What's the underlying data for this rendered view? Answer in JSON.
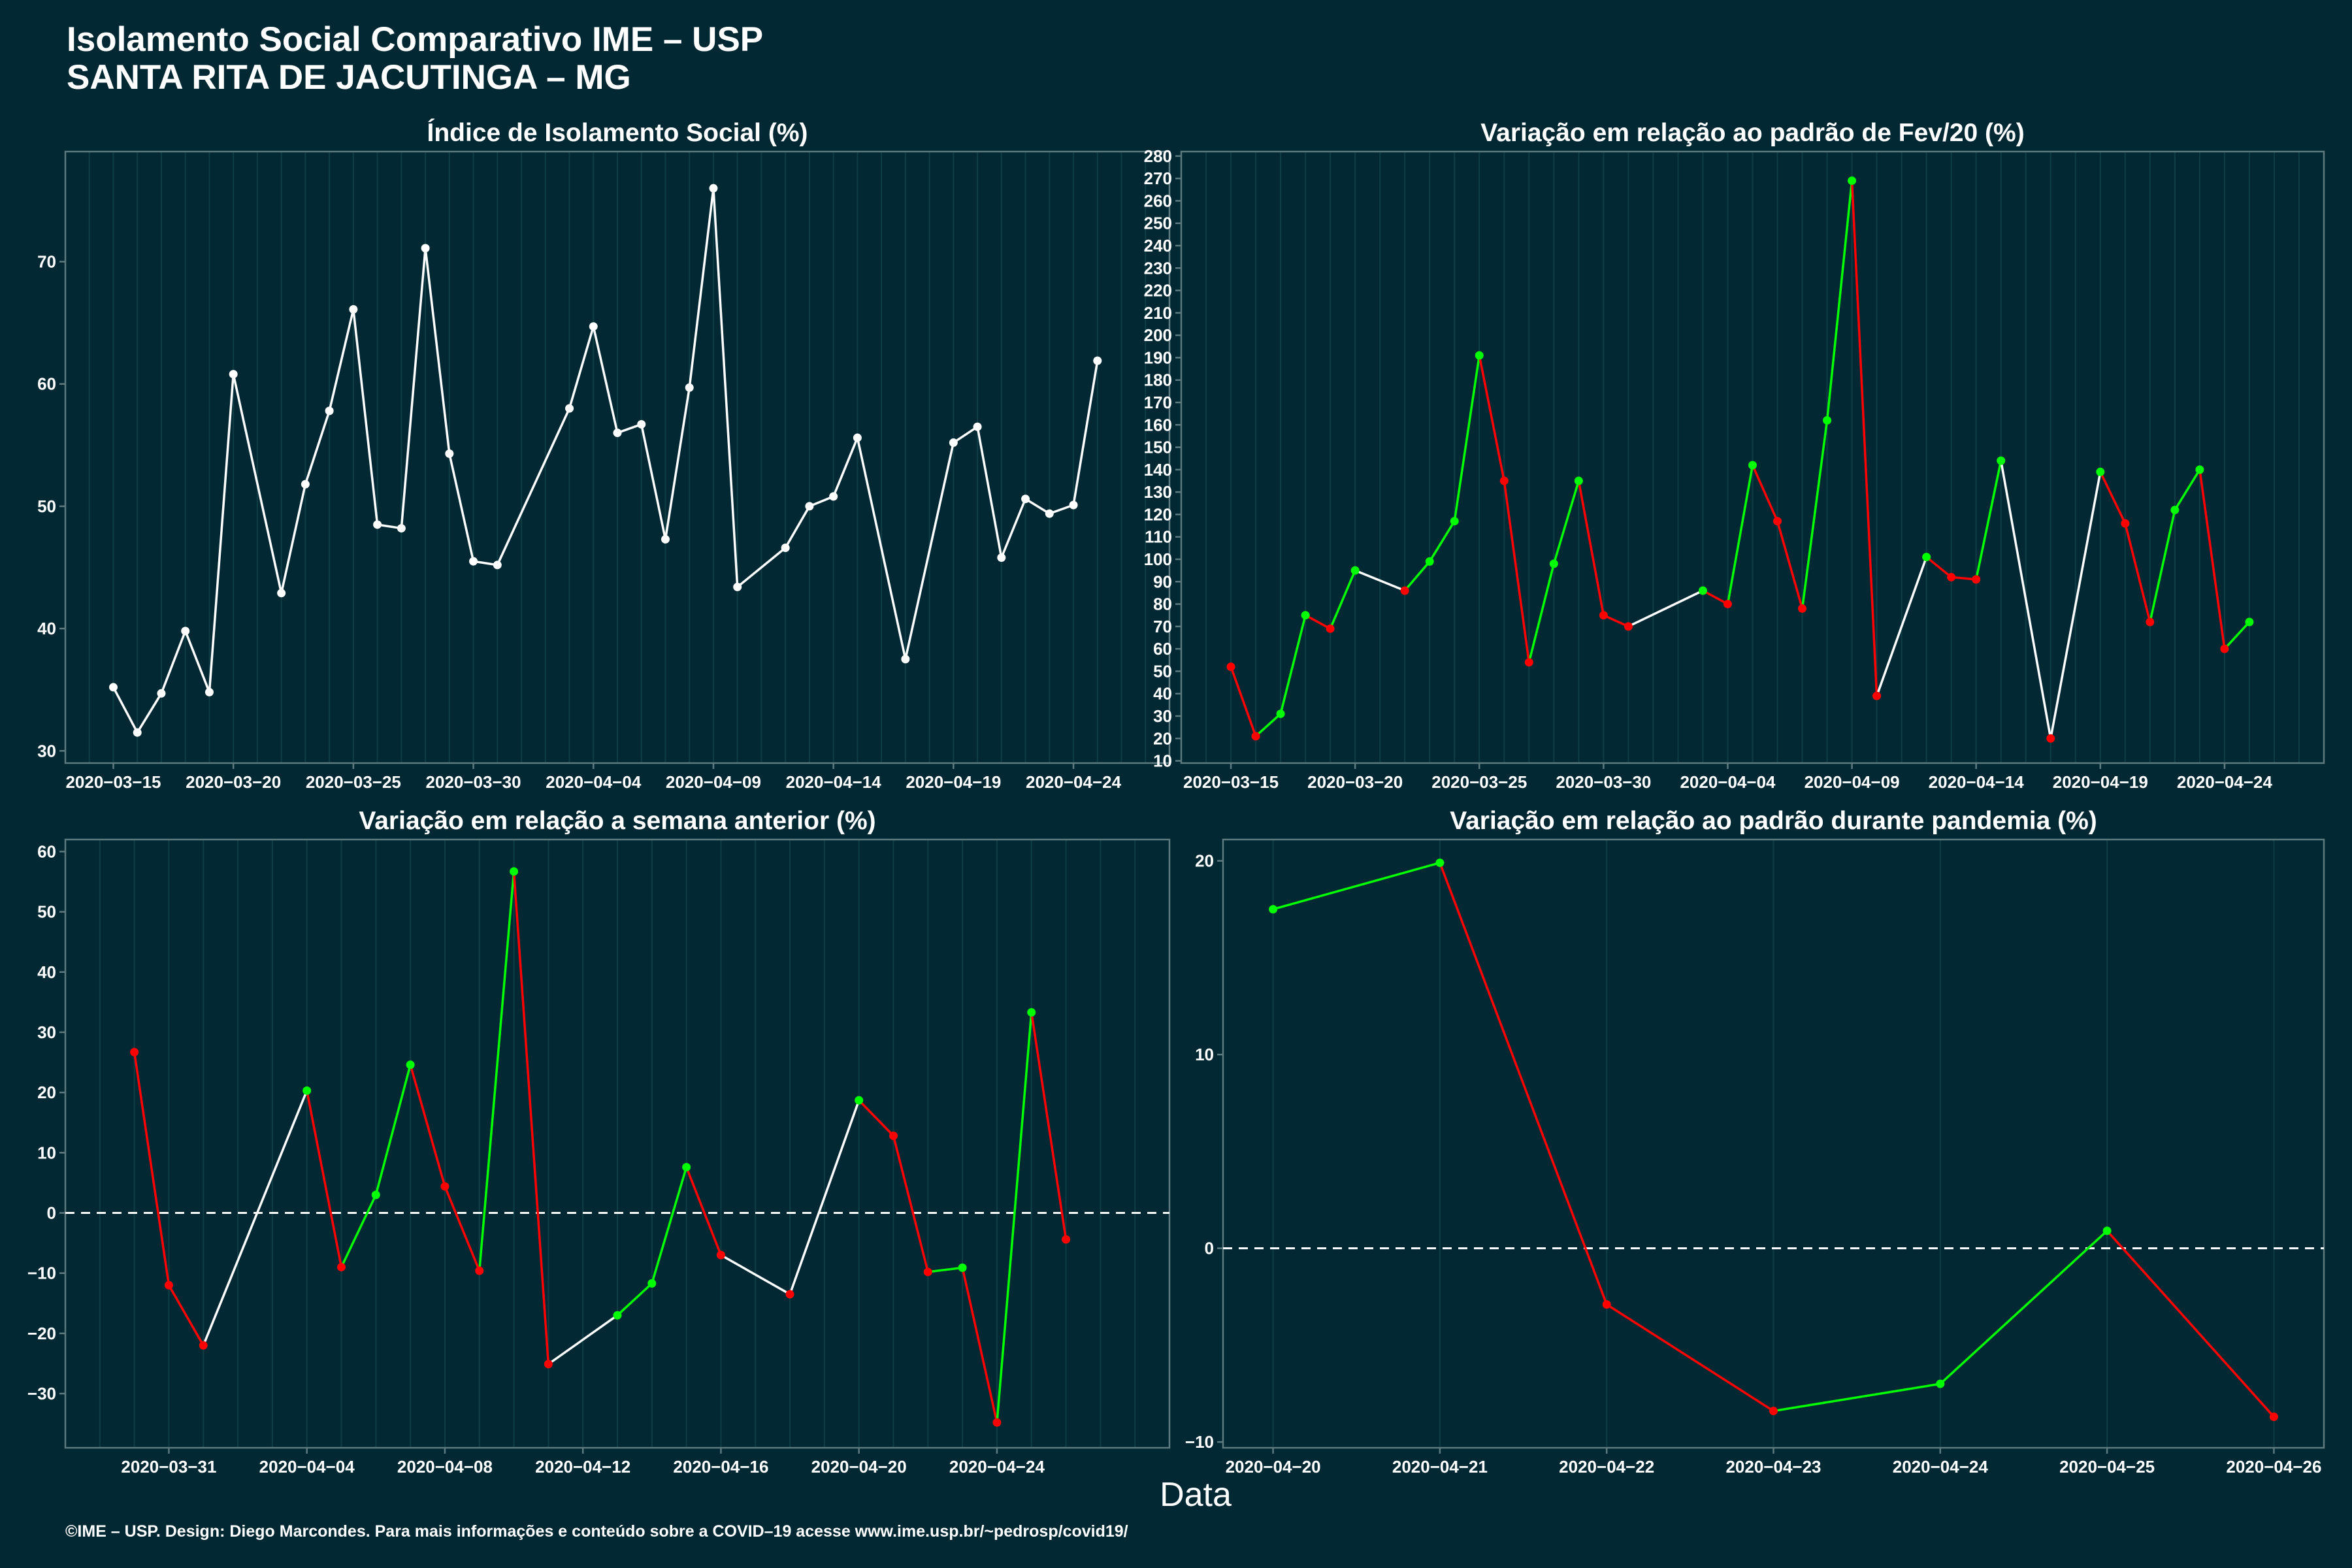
{
  "header": {
    "title_line1": "Isolamento Social Comparativo IME – USP",
    "title_line2": "SANTA RITA DE JACUTINGA – MG"
  },
  "xlabel": "Data",
  "caption": "©IME – USP. Design: Diego Marcondes. Para mais informações e conteúdo sobre a COVID–19 acesse www.ime.usp.br/~pedrosp/covid19/",
  "colors": {
    "background": "#022933",
    "frame": "#5d7a80",
    "grid": "#0f3d46",
    "line_neutral": "#ffffff",
    "up": "#00ff00",
    "down": "#ff0000",
    "zero_line": "#ffffff"
  },
  "chart_data": [
    {
      "type": "line",
      "title": "Índice de Isolamento Social (%)",
      "xlabel": "Data",
      "ylabel": "",
      "ylim": [
        29,
        79
      ],
      "yticks": [
        30,
        40,
        50,
        60,
        70
      ],
      "xlim": [
        "2020-03-13",
        "2020-04-28"
      ],
      "xticks": [
        "2020-03-15",
        "2020-03-20",
        "2020-03-25",
        "2020-03-30",
        "2020-04-04",
        "2020-04-09",
        "2020-04-14",
        "2020-04-19",
        "2020-04-24"
      ],
      "color_mode": "white",
      "series": [
        {
          "dates": [
            "2020-03-15",
            "2020-03-16",
            "2020-03-17",
            "2020-03-18",
            "2020-03-19",
            "2020-03-20",
            "2020-03-22",
            "2020-03-23",
            "2020-03-24",
            "2020-03-25",
            "2020-03-26",
            "2020-03-27",
            "2020-03-28",
            "2020-03-29",
            "2020-03-30",
            "2020-03-31",
            "2020-04-03",
            "2020-04-04",
            "2020-04-05",
            "2020-04-06",
            "2020-04-07",
            "2020-04-08",
            "2020-04-09",
            "2020-04-10",
            "2020-04-12",
            "2020-04-13",
            "2020-04-14",
            "2020-04-15",
            "2020-04-17",
            "2020-04-19",
            "2020-04-20",
            "2020-04-21",
            "2020-04-22",
            "2020-04-23",
            "2020-04-24",
            "2020-04-25",
            "2020-04-26"
          ],
          "values": [
            35.2,
            31.5,
            34.7,
            39.8,
            34.8,
            60.8,
            42.9,
            51.8,
            57.8,
            66.1,
            48.5,
            48.2,
            71.1,
            54.3,
            45.5,
            45.2,
            58.0,
            64.7,
            56.0,
            56.7,
            47.3,
            59.7,
            76.0,
            43.4,
            46.6,
            50.0,
            50.8,
            55.6,
            37.5,
            55.2,
            56.5,
            45.8,
            50.6,
            49.4,
            50.1,
            61.9,
            null
          ]
        }
      ]
    },
    {
      "type": "line",
      "title": "Variação em relação ao padrão de Fev/20 (%)",
      "xlabel": "Data",
      "ylabel": "",
      "ylim": [
        9,
        282
      ],
      "yticks": [
        10,
        20,
        30,
        40,
        50,
        60,
        70,
        80,
        90,
        100,
        110,
        120,
        130,
        140,
        150,
        160,
        170,
        180,
        190,
        200,
        210,
        220,
        230,
        240,
        250,
        260,
        270,
        280
      ],
      "xlim": [
        "2020-03-13",
        "2020-04-28"
      ],
      "xticks": [
        "2020-03-15",
        "2020-03-20",
        "2020-03-25",
        "2020-03-30",
        "2020-04-04",
        "2020-04-09",
        "2020-04-14",
        "2020-04-19",
        "2020-04-24"
      ],
      "color_mode": "trend",
      "series": [
        {
          "dates": [
            "2020-03-15",
            "2020-03-16",
            "2020-03-17",
            "2020-03-18",
            "2020-03-19",
            "2020-03-20",
            "2020-03-22",
            "2020-03-23",
            "2020-03-24",
            "2020-03-25",
            "2020-03-26",
            "2020-03-27",
            "2020-03-28",
            "2020-03-29",
            "2020-03-30",
            "2020-03-31",
            "2020-04-03",
            "2020-04-04",
            "2020-04-05",
            "2020-04-06",
            "2020-04-07",
            "2020-04-08",
            "2020-04-09",
            "2020-04-10",
            "2020-04-12",
            "2020-04-13",
            "2020-04-14",
            "2020-04-15",
            "2020-04-17",
            "2020-04-19",
            "2020-04-20",
            "2020-04-21",
            "2020-04-22",
            "2020-04-23",
            "2020-04-24",
            "2020-04-25"
          ],
          "values": [
            52,
            21,
            31,
            75,
            69,
            95,
            86,
            99,
            117,
            191,
            135,
            54,
            98,
            135,
            75,
            70,
            86,
            80,
            142,
            117,
            78,
            162,
            269,
            39,
            101,
            92,
            91,
            144,
            20,
            139,
            116,
            72,
            122,
            140,
            60,
            72
          ]
        }
      ]
    },
    {
      "type": "line",
      "title": "Variação em relação a semana anterior (%)",
      "xlabel": "Data",
      "ylabel": "",
      "ylim": [
        -39,
        62
      ],
      "yticks": [
        -30,
        -20,
        -10,
        0,
        10,
        20,
        30,
        40,
        50,
        60
      ],
      "xlim": [
        "2020-03-28",
        "2020-04-29"
      ],
      "xticks": [
        "2020-03-31",
        "2020-04-04",
        "2020-04-08",
        "2020-04-12",
        "2020-04-16",
        "2020-04-20",
        "2020-04-24"
      ],
      "zero_line": true,
      "color_mode": "trend",
      "series": [
        {
          "dates": [
            "2020-03-30",
            "2020-03-31",
            "2020-04-01",
            "2020-04-04",
            "2020-04-05",
            "2020-04-06",
            "2020-04-07",
            "2020-04-08",
            "2020-04-09",
            "2020-04-10",
            "2020-04-11",
            "2020-04-13",
            "2020-04-14",
            "2020-04-15",
            "2020-04-16",
            "2020-04-18",
            "2020-04-20",
            "2020-04-21",
            "2020-04-22",
            "2020-04-23",
            "2020-04-24",
            "2020-04-25",
            "2020-04-26"
          ],
          "values": [
            26.7,
            -12.0,
            -22.0,
            20.3,
            -9.0,
            3.0,
            24.6,
            4.4,
            -9.6,
            56.7,
            -25.1,
            -17.0,
            -11.7,
            7.6,
            -7.0,
            -13.5,
            18.7,
            12.8,
            -9.8,
            -9.1,
            -34.8,
            33.3,
            -4.4
          ]
        }
      ]
    },
    {
      "type": "line",
      "title": "Variação em relação ao padrão durante pandemia (%)",
      "xlabel": "Data",
      "ylabel": "",
      "ylim": [
        -10.3,
        21.1
      ],
      "yticks": [
        -10,
        0,
        10,
        20
      ],
      "xlim": [
        "2020-04-19.7",
        "2020-04-26.3"
      ],
      "xticks": [
        "2020-04-20",
        "2020-04-21",
        "2020-04-22",
        "2020-04-23",
        "2020-04-24",
        "2020-04-25",
        "2020-04-26"
      ],
      "zero_line": true,
      "color_mode": "trend",
      "series": [
        {
          "dates": [
            "2020-04-20",
            "2020-04-21",
            "2020-04-22",
            "2020-04-23",
            "2020-04-24",
            "2020-04-25",
            "2020-04-26"
          ],
          "values": [
            17.5,
            19.9,
            -2.9,
            -8.4,
            -7.0,
            0.9,
            -8.7
          ]
        }
      ]
    }
  ]
}
